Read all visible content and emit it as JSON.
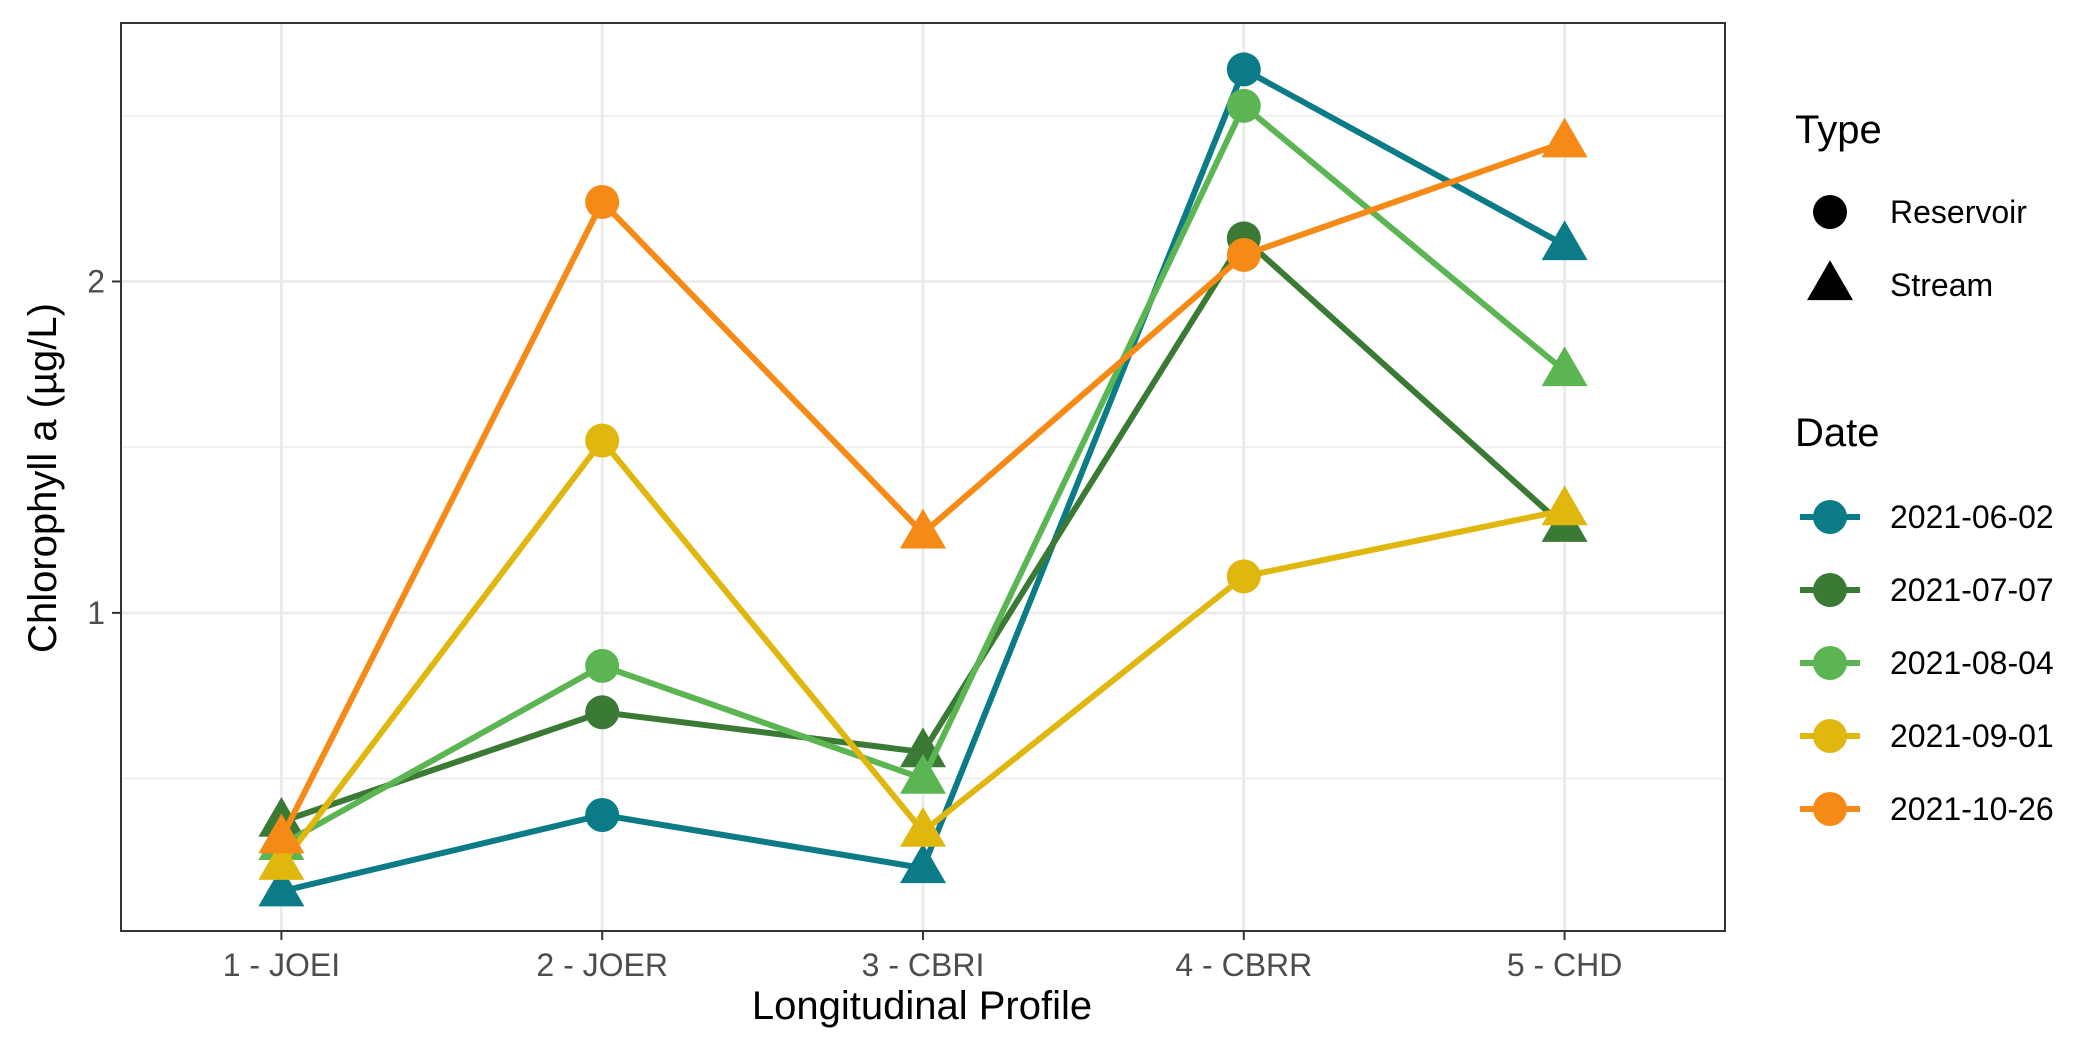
{
  "chart_data": {
    "type": "line",
    "xlabel": "Longitudinal Profile",
    "ylabel": "Chlorophyll a (µg/L)",
    "categories": [
      "1 - JOEI",
      "2 - JOER",
      "3 - CBRI",
      "4 - CBRR",
      "5 - CHD"
    ],
    "ylim": [
      0.04,
      2.78
    ],
    "yticks": [
      1,
      2
    ],
    "grid": true,
    "point_shapes": [
      "triangle",
      "circle",
      "triangle",
      "circle",
      "triangle"
    ],
    "legend_type": {
      "title": "Type",
      "items": [
        {
          "label": "Reservoir",
          "shape": "circle"
        },
        {
          "label": "Stream",
          "shape": "triangle"
        }
      ]
    },
    "legend_date": {
      "title": "Date"
    },
    "series": [
      {
        "name": "2021-06-02",
        "color": "#0b7c87",
        "values": [
          0.16,
          0.39,
          0.23,
          2.64,
          2.11
        ]
      },
      {
        "name": "2021-07-07",
        "color": "#3b7a35",
        "values": [
          0.37,
          0.7,
          0.58,
          2.13,
          1.26
        ]
      },
      {
        "name": "2021-08-04",
        "color": "#5cb553",
        "values": [
          0.3,
          0.84,
          0.5,
          2.53,
          1.73
        ]
      },
      {
        "name": "2021-09-01",
        "color": "#e0b70f",
        "values": [
          0.24,
          1.52,
          0.34,
          1.11,
          1.31
        ]
      },
      {
        "name": "2021-10-26",
        "color": "#f58a17",
        "values": [
          0.32,
          2.24,
          1.24,
          2.08,
          2.42
        ]
      }
    ]
  }
}
